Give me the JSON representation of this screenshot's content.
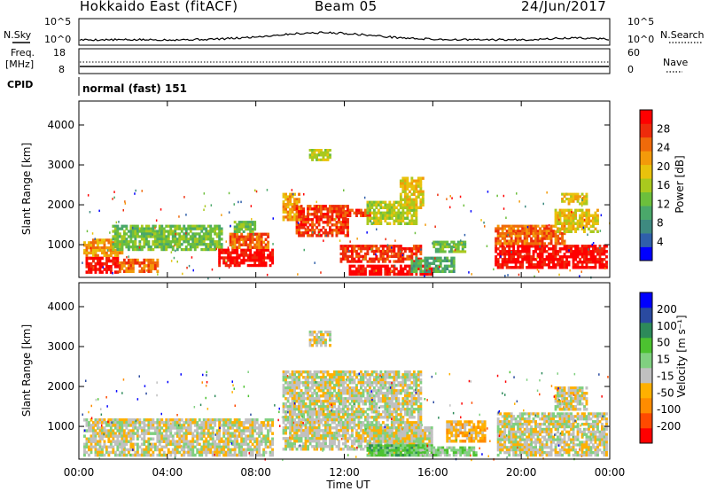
{
  "header": {
    "station": "Hokkaido East (fitACF)",
    "beam": "Beam 05",
    "date": "24/Jun/2017"
  },
  "nsky_panel": {
    "left_label": "N.Sky",
    "left_ticks": [
      "10^5",
      "10^0"
    ],
    "right_ticks": [
      "10^5",
      "10^0"
    ],
    "right_label": "N.Search"
  },
  "freq_panel": {
    "label_line1": "Freq.",
    "label_line2": "[MHz]",
    "left_ticks": [
      "18",
      "8"
    ],
    "right_ticks": [
      "60",
      "0"
    ],
    "right_label": "Nave"
  },
  "cpid_panel": {
    "label": "CPID",
    "mode_text": "normal (fast) 151"
  },
  "chart_data": [
    {
      "type": "heatmap",
      "name": "power",
      "ylabel": "Slant Range [km]",
      "yticks": [
        "4000",
        "3000",
        "2000",
        "1000"
      ],
      "ylim": [
        180,
        4600
      ],
      "xlim": [
        0,
        24
      ],
      "colorbar_label": "Power [dB]",
      "colorbar_ticks": [
        "28",
        "24",
        "20",
        "16",
        "12",
        "8",
        "4"
      ],
      "colorbar_colors": [
        "#0000ff",
        "#2f5faa",
        "#3e8a80",
        "#4aa86a",
        "#6cbf3c",
        "#a9c91e",
        "#e9c20c",
        "#f39a0a",
        "#f06a0a",
        "#ee2b0b",
        "#ff0000"
      ],
      "bands": [
        {
          "x0": 0.3,
          "x1": 1.8,
          "y0": 280,
          "y1": 700,
          "level": 10
        },
        {
          "x0": 0.2,
          "x1": 2.0,
          "y0": 700,
          "y1": 1150,
          "level": 7
        },
        {
          "x0": 1.8,
          "x1": 3.6,
          "y0": 300,
          "y1": 650,
          "level": 8
        },
        {
          "x0": 1.5,
          "x1": 6.5,
          "y0": 850,
          "y1": 1500,
          "level": 4
        },
        {
          "x0": 6.3,
          "x1": 8.8,
          "y0": 450,
          "y1": 900,
          "level": 10
        },
        {
          "x0": 6.8,
          "x1": 8.6,
          "y0": 900,
          "y1": 1300,
          "level": 8
        },
        {
          "x0": 7.0,
          "x1": 8.0,
          "y0": 1300,
          "y1": 1600,
          "level": 4
        },
        {
          "x0": 9.2,
          "x1": 10.0,
          "y0": 1600,
          "y1": 2300,
          "level": 7
        },
        {
          "x0": 9.8,
          "x1": 12.2,
          "y0": 1200,
          "y1": 2000,
          "level": 9
        },
        {
          "x0": 11.8,
          "x1": 13.2,
          "y0": 1700,
          "y1": 1900,
          "level": 9
        },
        {
          "x0": 13.0,
          "x1": 15.3,
          "y0": 1500,
          "y1": 2100,
          "level": 5
        },
        {
          "x0": 14.5,
          "x1": 15.6,
          "y0": 1900,
          "y1": 2700,
          "level": 6
        },
        {
          "x0": 10.4,
          "x1": 11.4,
          "y0": 3100,
          "y1": 3400,
          "level": 5
        },
        {
          "x0": 11.8,
          "x1": 15.5,
          "y0": 550,
          "y1": 1000,
          "level": 9
        },
        {
          "x0": 12.2,
          "x1": 16.0,
          "y0": 230,
          "y1": 500,
          "level": 10
        },
        {
          "x0": 16.0,
          "x1": 17.5,
          "y0": 800,
          "y1": 1100,
          "level": 4
        },
        {
          "x0": 15.0,
          "x1": 17.0,
          "y0": 300,
          "y1": 700,
          "level": 3
        },
        {
          "x0": 18.8,
          "x1": 23.9,
          "y0": 400,
          "y1": 1000,
          "level": 10
        },
        {
          "x0": 18.8,
          "x1": 22.0,
          "y0": 1000,
          "y1": 1500,
          "level": 8
        },
        {
          "x0": 21.5,
          "x1": 23.5,
          "y0": 1300,
          "y1": 1900,
          "level": 6
        },
        {
          "x0": 21.8,
          "x1": 23.0,
          "y0": 2000,
          "y1": 2300,
          "level": 6
        }
      ]
    },
    {
      "type": "heatmap",
      "name": "velocity",
      "ylabel": "Slant Range [km]",
      "yticks": [
        "4000",
        "3000",
        "2000",
        "1000"
      ],
      "ylim": [
        180,
        4600
      ],
      "xlim": [
        0,
        24
      ],
      "xticks": [
        "00:00",
        "04:00",
        "08:00",
        "12:00",
        "16:00",
        "20:00",
        "00:00"
      ],
      "xlabel": "Time UT",
      "colorbar_label": "Velocity [m s⁻¹]",
      "colorbar_ticks": [
        "200",
        "100",
        "50",
        "15",
        "-15",
        "-50",
        "-100",
        "-200"
      ],
      "colorbar_colors": [
        "#ff0000",
        "#ff4a00",
        "#ff8c00",
        "#ffb000",
        "#c0c0c0",
        "#80d080",
        "#4cc230",
        "#2d8a5a",
        "#2a4aa0",
        "#0000ff"
      ],
      "bands": [
        {
          "x0": 0.2,
          "x1": 8.8,
          "y0": 250,
          "y1": 1200,
          "level": 4
        },
        {
          "x0": 9.2,
          "x1": 15.5,
          "y0": 400,
          "y1": 2400,
          "level": 4
        },
        {
          "x0": 10.4,
          "x1": 11.4,
          "y0": 3000,
          "y1": 3400,
          "level": 4
        },
        {
          "x0": 13.0,
          "x1": 16.0,
          "y0": 250,
          "y1": 1000,
          "level": 4
        },
        {
          "x0": 13.0,
          "x1": 16.0,
          "y0": 250,
          "y1": 550,
          "level": 6
        },
        {
          "x0": 16.6,
          "x1": 18.4,
          "y0": 600,
          "y1": 1150,
          "level": 3
        },
        {
          "x0": 15.2,
          "x1": 18.0,
          "y0": 250,
          "y1": 500,
          "level": 5
        },
        {
          "x0": 18.9,
          "x1": 23.9,
          "y0": 250,
          "y1": 1350,
          "level": 4
        },
        {
          "x0": 21.5,
          "x1": 23.0,
          "y0": 1400,
          "y1": 2000,
          "level": 4
        }
      ]
    }
  ]
}
